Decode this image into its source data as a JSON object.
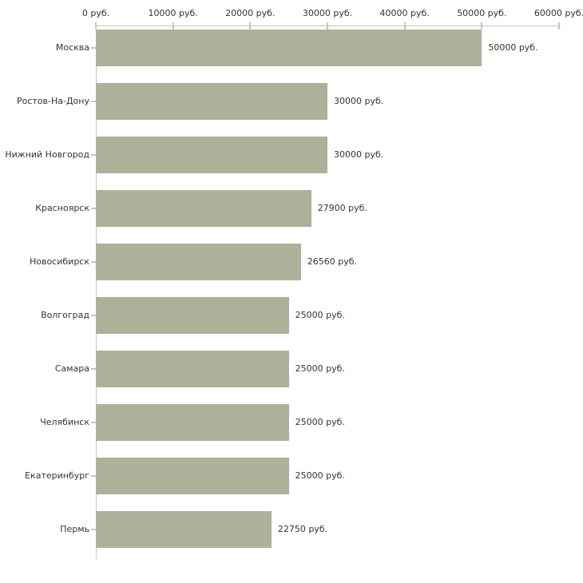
{
  "chart_data": {
    "type": "bar",
    "orientation": "horizontal",
    "title": "",
    "categories": [
      "Москва",
      "Ростов-На-Дону",
      "Нижний Новгород",
      "Красноярск",
      "Новосибирск",
      "Волгоград",
      "Самара",
      "Челябинск",
      "Екатеринбург",
      "Пермь"
    ],
    "values": [
      50000,
      30000,
      30000,
      27900,
      26560,
      25000,
      25000,
      25000,
      25000,
      22750
    ],
    "value_labels": [
      "50000 руб.",
      "30000 руб.",
      "30000 руб.",
      "27900 руб.",
      "26560 руб.",
      "25000 руб.",
      "25000 руб.",
      "25000 руб.",
      "25000 руб.",
      "22750 руб."
    ],
    "x_axis": {
      "position": "top",
      "range": [
        0,
        60000
      ],
      "ticks": [
        0,
        10000,
        20000,
        30000,
        40000,
        50000,
        60000
      ],
      "tick_labels": [
        "0 руб.",
        "10000 руб.",
        "20000 руб.",
        "30000 руб.",
        "40000 руб.",
        "50000 руб.",
        "60000 руб."
      ],
      "unit": "руб."
    },
    "legend": false,
    "grid": false,
    "colors": {
      "bar": "#acb299",
      "axis_line": "#c4c4c4",
      "tick_mark": "#c8c9a6",
      "text": "#333333",
      "background": "#ffffff"
    }
  }
}
